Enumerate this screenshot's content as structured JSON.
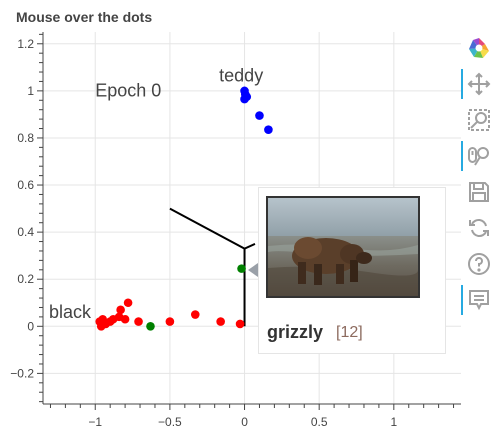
{
  "title": "Mouse over the dots",
  "chart_data": {
    "type": "scatter",
    "title": "Mouse over the dots",
    "xlim": [
      -1.35,
      1.45
    ],
    "ylim": [
      -0.33,
      1.25
    ],
    "x_ticks": [
      -1,
      -0.5,
      0,
      0.5,
      1
    ],
    "x_tick_labels": [
      "−1",
      "−0.5",
      "0",
      "0.5",
      "1"
    ],
    "y_ticks": [
      -0.2,
      0,
      0.2,
      0.4,
      0.6,
      0.8,
      1,
      1.2
    ],
    "y_tick_labels": [
      "−0.2",
      "0",
      "0.2",
      "0.4",
      "0.6",
      "0.8",
      "1",
      "1.2"
    ],
    "grid": true,
    "series": [
      {
        "color": "#0000ff",
        "points": [
          [
            0,
            1.0
          ],
          [
            0.005,
            0.985
          ],
          [
            0.015,
            0.975
          ],
          [
            0.0,
            0.965
          ],
          [
            0.1,
            0.895
          ],
          [
            0.16,
            0.835
          ]
        ]
      },
      {
        "color": "#ff0000",
        "points": [
          [
            -0.96,
            0.0
          ],
          [
            -0.97,
            0.02
          ],
          [
            -0.95,
            0.03
          ],
          [
            -0.93,
            0.01
          ],
          [
            -0.9,
            0.02
          ],
          [
            -0.88,
            0.03
          ],
          [
            -0.84,
            0.04
          ],
          [
            -0.83,
            0.07
          ],
          [
            -0.8,
            0.03
          ],
          [
            -0.78,
            0.1
          ],
          [
            -0.71,
            0.02
          ],
          [
            -0.5,
            0.02
          ],
          [
            -0.33,
            0.05
          ],
          [
            -0.16,
            0.02
          ],
          [
            -0.03,
            0.01
          ]
        ]
      },
      {
        "color": "#008000",
        "points": [
          [
            -0.63,
            0.0
          ],
          [
            -0.02,
            0.245
          ],
          [
            0.94,
            0.02
          ]
        ]
      }
    ],
    "lines": [
      {
        "color": "#000000",
        "points": [
          [
            -0.5,
            0.5
          ],
          [
            0,
            0.33
          ],
          [
            0.07,
            0.35
          ]
        ]
      },
      {
        "color": "#000000",
        "points": [
          [
            0,
            0.33
          ],
          [
            0,
            0.0
          ]
        ]
      }
    ],
    "annotations": [
      {
        "text": "Epoch 0",
        "x": -1.0,
        "y": 0.975
      },
      {
        "text": "teddy",
        "x": -0.17,
        "y": 1.04
      },
      {
        "text": "black",
        "x": -1.31,
        "y": 0.035
      },
      {
        "text": "grizzly",
        "x": 1.0,
        "y": 0.035
      }
    ]
  },
  "tooltip": {
    "label": "grizzly",
    "index": "[12]",
    "image": "grizzly-bear-photo"
  },
  "toolbar": {
    "logo": "bokeh-logo",
    "tools": [
      {
        "name": "pan-tool-icon",
        "active": true
      },
      {
        "name": "box-zoom-tool-icon",
        "active": false
      },
      {
        "name": "wheel-zoom-tool-icon",
        "active": true
      },
      {
        "name": "save-tool-icon",
        "active": false
      },
      {
        "name": "reset-tool-icon",
        "active": false
      },
      {
        "name": "help-tool-icon",
        "active": false
      },
      {
        "name": "hover-tool-icon",
        "active": true
      }
    ]
  },
  "colors": {
    "grid": "#e5e5e5",
    "axis": "#444444",
    "tool_active": "#26aae1",
    "tool_icon": "#a0a0a0"
  }
}
